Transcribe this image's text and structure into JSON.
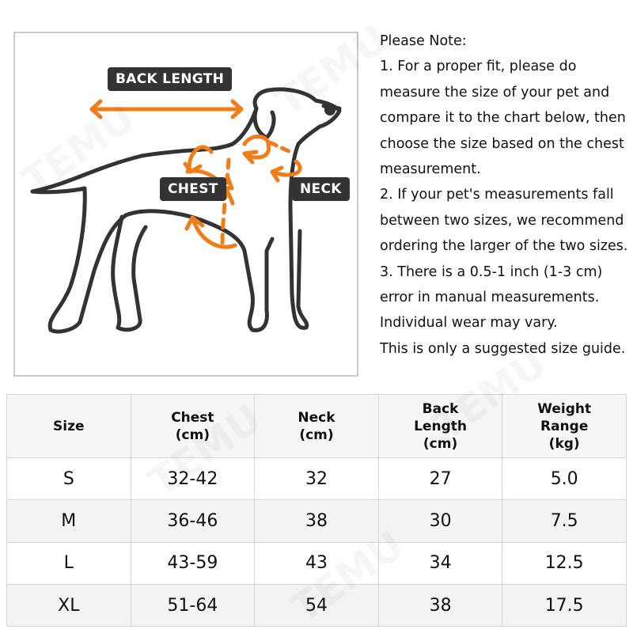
{
  "diagram": {
    "labels": {
      "back_length": "BACK LENGTH",
      "chest": "CHEST",
      "neck": "NECK"
    },
    "accent": "#f07d1a",
    "label_bg": "#333333"
  },
  "note": {
    "title": "Please Note:",
    "lines": [
      "1. For a proper fit, please do",
      "measure the size of your pet and",
      "compare it to the chart below, then",
      "choose the size based on the chest",
      "measurement.",
      "2. If your pet's measurements fall",
      "between two sizes, we recommend",
      "ordering the larger of the two sizes.",
      "3. There is a 0.5-1 inch (1-3 cm)",
      "error in manual measurements.",
      "Individual wear may vary.",
      "This is only a suggested size guide."
    ]
  },
  "table": {
    "headers": [
      [
        "Size"
      ],
      [
        "Chest",
        "(cm)"
      ],
      [
        "Neck",
        "(cm)"
      ],
      [
        "Back",
        "Length",
        "(cm)"
      ],
      [
        "Weight",
        "Range",
        "(kg)"
      ]
    ],
    "rows": [
      [
        "S",
        "32-42",
        "32",
        "27",
        "5.0"
      ],
      [
        "M",
        "36-46",
        "38",
        "30",
        "7.5"
      ],
      [
        "L",
        "43-59",
        "43",
        "34",
        "12.5"
      ],
      [
        "XL",
        "51-64",
        "54",
        "38",
        "17.5"
      ]
    ]
  },
  "watermark": "TEMU"
}
